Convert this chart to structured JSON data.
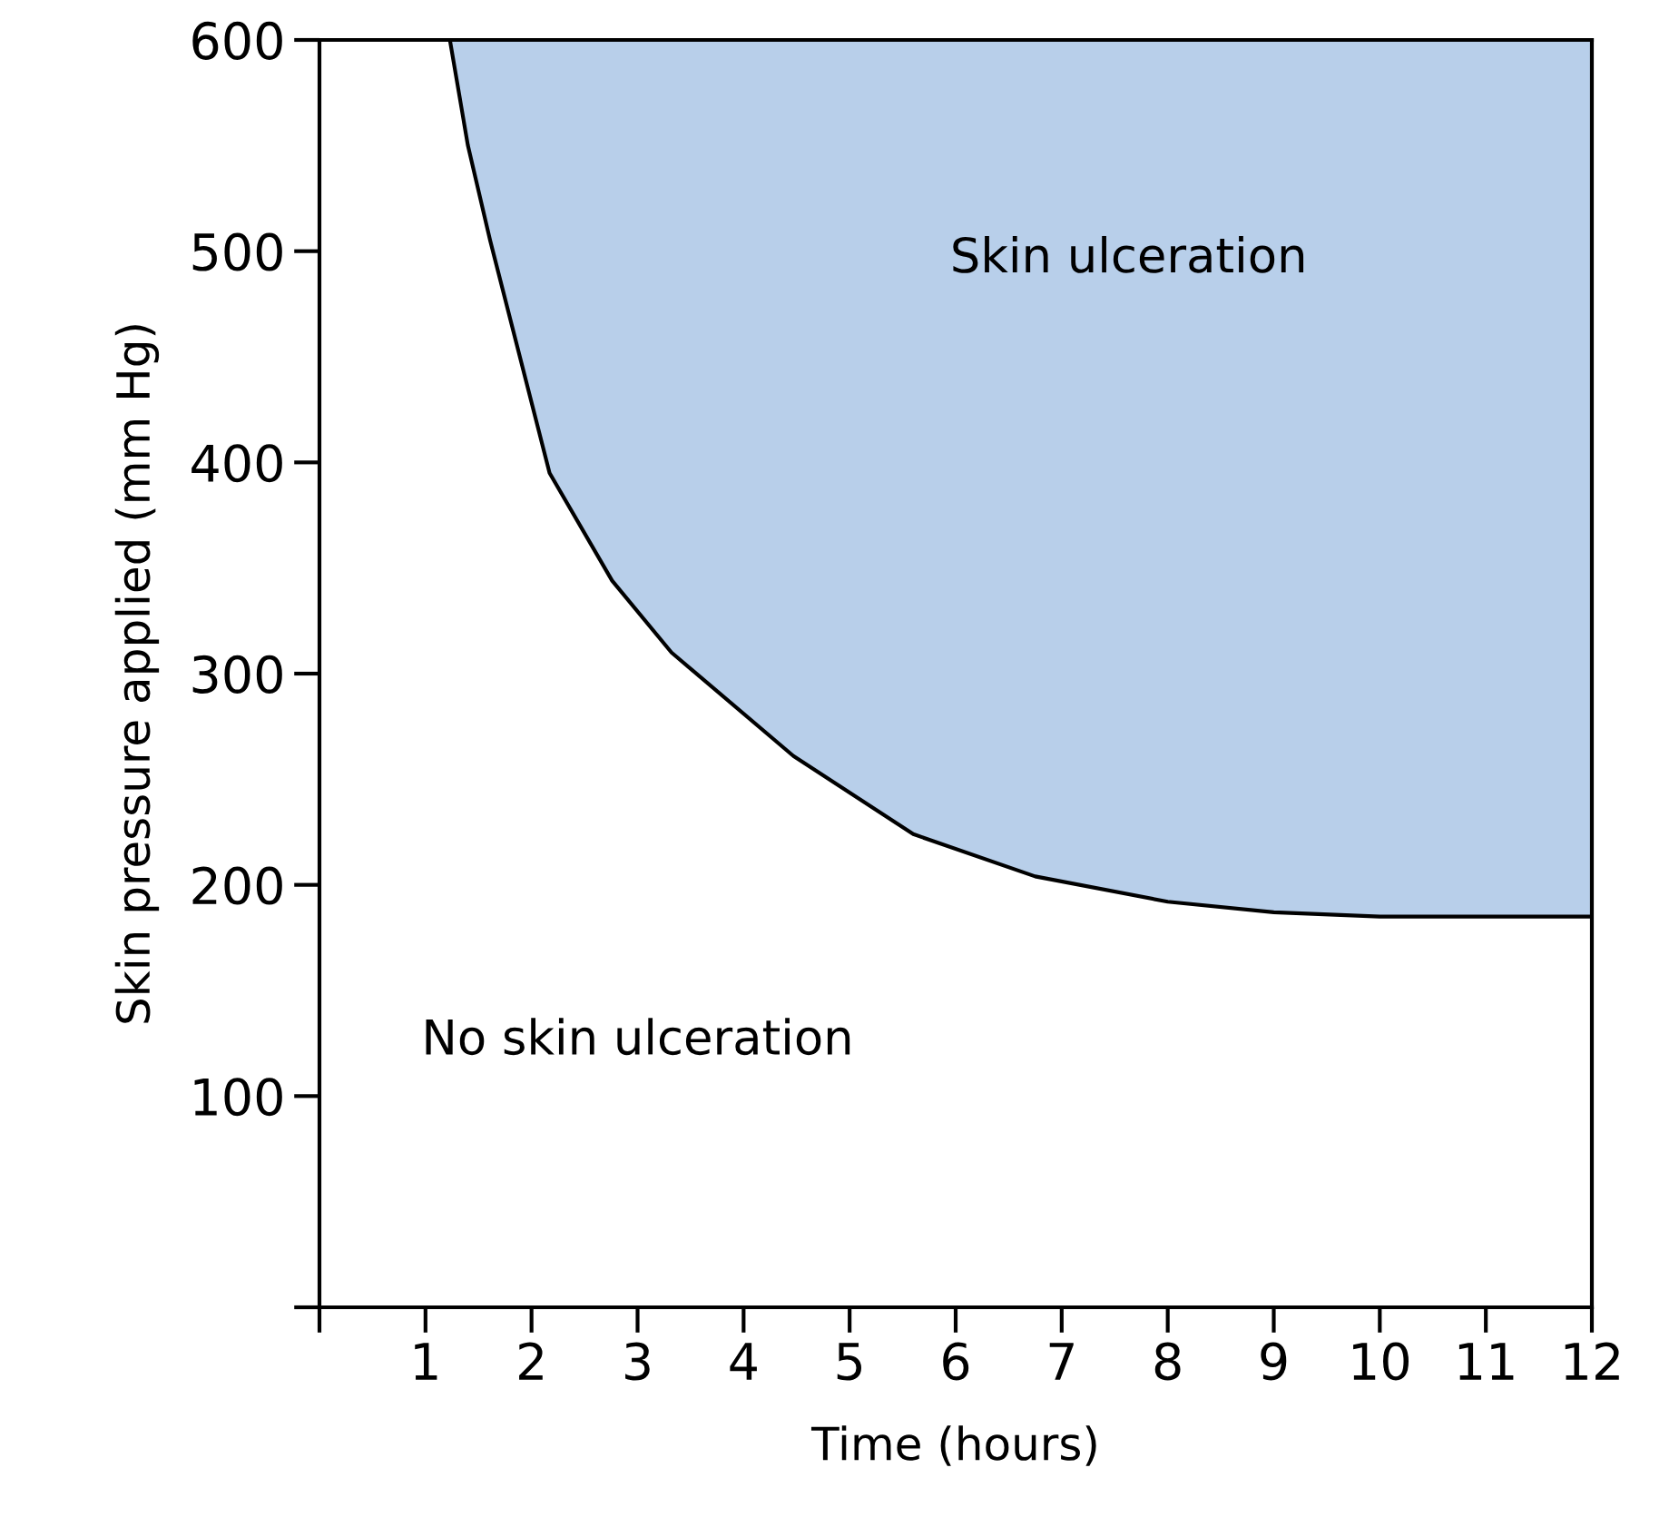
{
  "chart_data": {
    "type": "line",
    "xlabel": "Time (hours)",
    "ylabel": "Skin pressure applied (mm Hg)",
    "series": [
      {
        "color": "#000000",
        "lower": [
          600,
          550,
          505,
          395,
          344,
          310,
          261,
          224,
          204,
          192,
          187,
          185,
          185,
          185
        ],
        "x": [
          1.23,
          1.4,
          1.61,
          2.17,
          2.76,
          3.32,
          4.47,
          5.6,
          6.75,
          8,
          9,
          10,
          11,
          12
        ],
        "values": [
          600,
          550,
          505,
          395,
          344,
          310,
          261,
          224,
          204,
          192,
          187,
          185,
          185,
          185
        ],
        "upper": [
          600,
          600,
          600,
          600,
          600,
          600,
          600,
          600,
          600,
          600,
          600,
          600,
          600,
          600
        ]
      }
    ],
    "annotations": [
      "Skin ulceration",
      "No skin ulceration"
    ],
    "xlim": [
      0,
      12
    ],
    "xticks": [
      {
        "value": 0,
        "label": null
      },
      1,
      2,
      3,
      4,
      5,
      6,
      7,
      8,
      9,
      10,
      11,
      12
    ],
    "ylim": [
      0,
      600
    ],
    "yticks": [
      {
        "value": 0,
        "label": null
      },
      100,
      200,
      300,
      400,
      500,
      600
    ],
    "grid": false
  }
}
